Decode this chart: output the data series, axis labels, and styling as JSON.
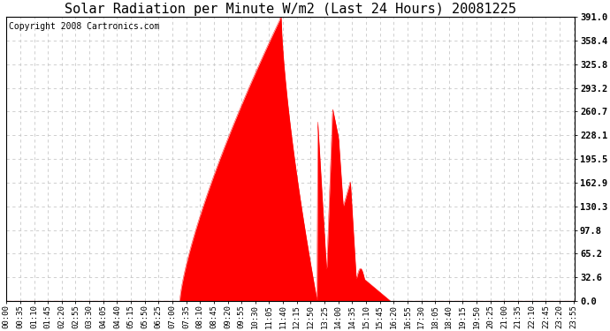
{
  "title": "Solar Radiation per Minute W/m2 (Last 24 Hours) 20081225",
  "copyright": "Copyright 2008 Cartronics.com",
  "yticks": [
    0.0,
    32.6,
    65.2,
    97.8,
    130.3,
    162.9,
    195.5,
    228.1,
    260.7,
    293.2,
    325.8,
    358.4,
    391.0
  ],
  "ymax": 391.0,
  "ymin": 0.0,
  "fill_color": "#ff0000",
  "line_color": "#ff0000",
  "dashed_line_color": "#ff0000",
  "bg_color": "#ffffff",
  "grid_color": "#c8c8c8",
  "title_fontsize": 11,
  "copyright_fontsize": 7,
  "tick_fontsize": 6.5,
  "ytick_fontsize": 7.5,
  "xtick_interval": 35,
  "total_minutes": 1440
}
